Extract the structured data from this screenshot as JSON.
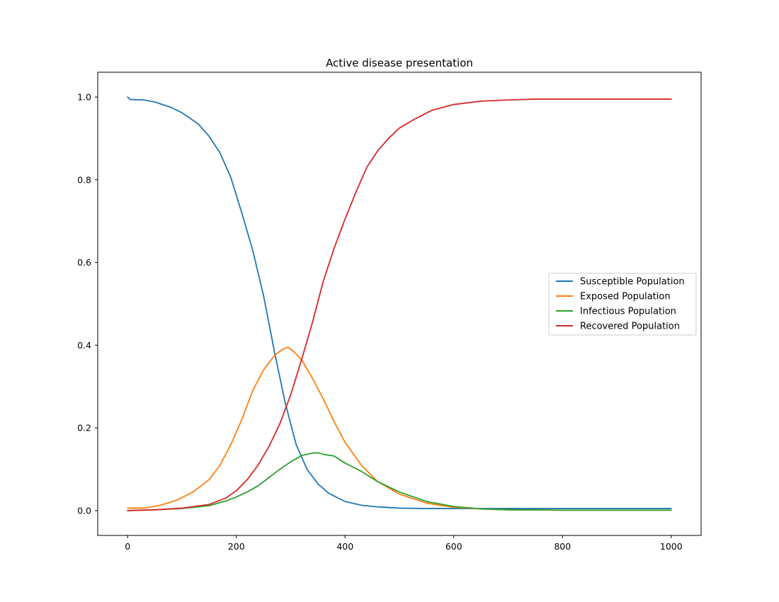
{
  "chart_data": {
    "type": "line",
    "title": "Active disease presentation",
    "xlabel": "",
    "ylabel": "",
    "xlim": [
      -55,
      1055
    ],
    "ylim": [
      -0.06,
      1.06
    ],
    "x_ticks": [
      0,
      200,
      400,
      600,
      800,
      1000
    ],
    "x_tick_labels": [
      "0",
      "200",
      "400",
      "600",
      "800",
      "1000"
    ],
    "y_ticks": [
      0.0,
      0.2,
      0.4,
      0.6,
      0.8,
      1.0
    ],
    "y_tick_labels": [
      "0.0",
      "0.2",
      "0.4",
      "0.6",
      "0.8",
      "1.0"
    ],
    "grid": false,
    "legend_position": "center-right",
    "series": [
      {
        "name": "Susceptible Population",
        "color": "#1f77b4",
        "x": [
          0,
          5,
          30,
          50,
          80,
          100,
          130,
          150,
          170,
          190,
          210,
          230,
          250,
          270,
          290,
          310,
          330,
          350,
          370,
          400,
          430,
          460,
          500,
          550,
          600,
          700,
          800,
          900,
          1000
        ],
        "y": [
          1.0,
          0.994,
          0.993,
          0.988,
          0.975,
          0.962,
          0.935,
          0.905,
          0.865,
          0.805,
          0.72,
          0.63,
          0.52,
          0.385,
          0.26,
          0.16,
          0.1,
          0.065,
          0.042,
          0.022,
          0.013,
          0.009,
          0.006,
          0.005,
          0.005,
          0.005,
          0.005,
          0.005,
          0.005
        ]
      },
      {
        "name": "Exposed Population",
        "color": "#ff7f0e",
        "x": [
          0,
          30,
          60,
          90,
          120,
          150,
          170,
          190,
          210,
          230,
          250,
          270,
          285,
          295,
          305,
          320,
          340,
          360,
          380,
          400,
          430,
          460,
          500,
          550,
          600,
          650,
          700,
          800,
          900,
          1000
        ],
        "y": [
          0.006,
          0.006,
          0.013,
          0.025,
          0.045,
          0.075,
          0.11,
          0.16,
          0.22,
          0.29,
          0.34,
          0.375,
          0.39,
          0.395,
          0.385,
          0.365,
          0.32,
          0.27,
          0.215,
          0.165,
          0.11,
          0.07,
          0.04,
          0.018,
          0.008,
          0.004,
          0.002,
          0.001,
          0.001,
          0.001
        ]
      },
      {
        "name": "Infectious Population",
        "color": "#2ca02c",
        "x": [
          0,
          50,
          100,
          150,
          180,
          200,
          220,
          240,
          260,
          280,
          300,
          320,
          340,
          350,
          360,
          380,
          400,
          430,
          460,
          500,
          550,
          600,
          650,
          700,
          800,
          900,
          1000
        ],
        "y": [
          0.0,
          0.002,
          0.005,
          0.012,
          0.023,
          0.033,
          0.045,
          0.06,
          0.08,
          0.1,
          0.118,
          0.133,
          0.139,
          0.14,
          0.136,
          0.132,
          0.115,
          0.095,
          0.07,
          0.045,
          0.022,
          0.01,
          0.004,
          0.002,
          0.001,
          0.001,
          0.001
        ]
      },
      {
        "name": "Recovered Population",
        "color": "#d62728",
        "x": [
          0,
          50,
          100,
          150,
          180,
          200,
          220,
          240,
          260,
          280,
          300,
          320,
          340,
          360,
          380,
          400,
          420,
          440,
          460,
          480,
          500,
          530,
          560,
          600,
          650,
          700,
          750,
          800,
          900,
          1000
        ],
        "y": [
          0.0,
          0.002,
          0.006,
          0.015,
          0.03,
          0.048,
          0.075,
          0.11,
          0.155,
          0.21,
          0.28,
          0.365,
          0.455,
          0.555,
          0.635,
          0.705,
          0.77,
          0.83,
          0.87,
          0.9,
          0.925,
          0.948,
          0.968,
          0.982,
          0.99,
          0.993,
          0.995,
          0.995,
          0.995,
          0.995
        ]
      }
    ]
  }
}
